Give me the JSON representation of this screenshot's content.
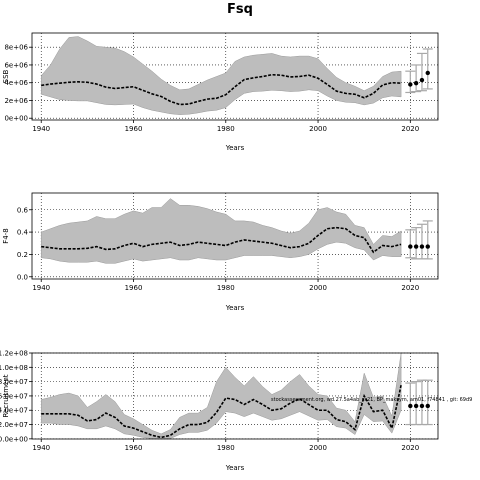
{
  "figure_title": "Fsq",
  "chart_data": [
    {
      "type": "line",
      "name": "ssb-panel",
      "ylabel": "SSB",
      "xlabel": "Years",
      "xlim": [
        1938,
        2026
      ],
      "ylim": [
        -200000,
        9600000
      ],
      "xticks": [
        1940,
        1960,
        1980,
        2000,
        2020
      ],
      "yticks": [
        0,
        2000000,
        4000000,
        6000000,
        8000000
      ],
      "ytick_labels": [
        "0e+00",
        "2e+06",
        "4e+06",
        "6e+06",
        "8e+06"
      ],
      "grid": "dotted",
      "x": [
        1940,
        1942,
        1944,
        1946,
        1948,
        1950,
        1952,
        1954,
        1956,
        1958,
        1960,
        1962,
        1964,
        1966,
        1968,
        1970,
        1972,
        1974,
        1976,
        1978,
        1980,
        1982,
        1984,
        1986,
        1988,
        1990,
        1992,
        1994,
        1996,
        1998,
        2000,
        2002,
        2004,
        2006,
        2008,
        2010,
        2012,
        2014,
        2016,
        2018
      ],
      "median": [
        3700000,
        3850000,
        3950000,
        4050000,
        4100000,
        4050000,
        3850000,
        3500000,
        3350000,
        3450000,
        3550000,
        3150000,
        2750000,
        2450000,
        1900000,
        1550000,
        1600000,
        1900000,
        2150000,
        2250000,
        2650000,
        3550000,
        4350000,
        4550000,
        4700000,
        4900000,
        4850000,
        4650000,
        4700000,
        4850000,
        4500000,
        3800000,
        3050000,
        2800000,
        2700000,
        2300000,
        2800000,
        3750000,
        4000000,
        3950000
      ],
      "lower": [
        2700000,
        2400000,
        2100000,
        2000000,
        1950000,
        1950000,
        1750000,
        1550000,
        1500000,
        1550000,
        1600000,
        1200000,
        900000,
        700000,
        500000,
        400000,
        450000,
        600000,
        800000,
        900000,
        1200000,
        2100000,
        2800000,
        3000000,
        3050000,
        3150000,
        3100000,
        3000000,
        3050000,
        3200000,
        3100000,
        2500000,
        2000000,
        1800000,
        1750000,
        1500000,
        1700000,
        2300000,
        2500000,
        2400000
      ],
      "upper": [
        4800000,
        6000000,
        7800000,
        9100000,
        9200000,
        8700000,
        8100000,
        8000000,
        7900000,
        7500000,
        6900000,
        6100000,
        5300000,
        4400000,
        3700000,
        3200000,
        3300000,
        3800000,
        4300000,
        4700000,
        5100000,
        6400000,
        6900000,
        7100000,
        7200000,
        7300000,
        7000000,
        6900000,
        7000000,
        7000000,
        6700000,
        5600000,
        4600000,
        4000000,
        3600000,
        3100000,
        3600000,
        4700000,
        5200000,
        5300000
      ],
      "forecast_x": [
        2020,
        2021,
        2022,
        2023
      ],
      "forecast_median": [
        3800000,
        3950000,
        4300000,
        5100000
      ],
      "forecast_lower": [
        2900000,
        3000000,
        3100000,
        3300000
      ],
      "forecast_upper": [
        5300000,
        6000000,
        7300000,
        7800000
      ]
    },
    {
      "type": "line",
      "name": "f-panel",
      "ylabel": "F4-8",
      "xlabel": "Years",
      "xlim": [
        1938,
        2026
      ],
      "ylim": [
        -0.02,
        0.75
      ],
      "xticks": [
        1940,
        1960,
        1980,
        2000,
        2020
      ],
      "yticks": [
        0.0,
        0.2,
        0.4,
        0.6
      ],
      "ytick_labels": [
        "0.0",
        "0.2",
        "0.4",
        "0.6"
      ],
      "grid": "dotted",
      "x": [
        1940,
        1942,
        1944,
        1946,
        1948,
        1950,
        1952,
        1954,
        1956,
        1958,
        1960,
        1962,
        1964,
        1966,
        1968,
        1970,
        1972,
        1974,
        1976,
        1978,
        1980,
        1982,
        1984,
        1986,
        1988,
        1990,
        1992,
        1994,
        1996,
        1998,
        2000,
        2002,
        2004,
        2006,
        2008,
        2010,
        2012,
        2014,
        2016,
        2018
      ],
      "median": [
        0.27,
        0.26,
        0.25,
        0.25,
        0.25,
        0.255,
        0.27,
        0.245,
        0.25,
        0.28,
        0.3,
        0.27,
        0.29,
        0.3,
        0.31,
        0.28,
        0.29,
        0.31,
        0.3,
        0.29,
        0.28,
        0.31,
        0.33,
        0.32,
        0.31,
        0.3,
        0.28,
        0.26,
        0.27,
        0.3,
        0.37,
        0.43,
        0.44,
        0.43,
        0.37,
        0.35,
        0.22,
        0.28,
        0.27,
        0.29
      ],
      "lower": [
        0.17,
        0.16,
        0.14,
        0.13,
        0.13,
        0.13,
        0.14,
        0.12,
        0.12,
        0.14,
        0.16,
        0.14,
        0.15,
        0.16,
        0.17,
        0.15,
        0.15,
        0.17,
        0.16,
        0.15,
        0.15,
        0.17,
        0.19,
        0.19,
        0.19,
        0.19,
        0.18,
        0.17,
        0.18,
        0.2,
        0.25,
        0.29,
        0.31,
        0.3,
        0.26,
        0.24,
        0.15,
        0.19,
        0.18,
        0.18
      ],
      "upper": [
        0.4,
        0.43,
        0.46,
        0.48,
        0.49,
        0.5,
        0.54,
        0.52,
        0.52,
        0.56,
        0.59,
        0.57,
        0.62,
        0.62,
        0.7,
        0.64,
        0.64,
        0.63,
        0.61,
        0.58,
        0.56,
        0.5,
        0.5,
        0.49,
        0.46,
        0.44,
        0.41,
        0.39,
        0.41,
        0.48,
        0.6,
        0.62,
        0.58,
        0.56,
        0.46,
        0.44,
        0.29,
        0.37,
        0.36,
        0.41
      ],
      "forecast_x": [
        2020,
        2021,
        2022,
        2023
      ],
      "forecast_median": [
        0.27,
        0.27,
        0.27,
        0.27
      ],
      "forecast_lower": [
        0.17,
        0.16,
        0.16,
        0.16
      ],
      "forecast_upper": [
        0.42,
        0.44,
        0.47,
        0.5
      ]
    },
    {
      "type": "line",
      "name": "recruitment-panel",
      "ylabel": "Recruitment",
      "xlabel": "Years",
      "xlim": [
        1938,
        2026
      ],
      "ylim": [
        -200000,
        120000000
      ],
      "xticks": [
        1940,
        1960,
        1980,
        2000,
        2020
      ],
      "yticks": [
        0,
        20000000,
        40000000,
        60000000,
        80000000,
        100000000,
        120000000
      ],
      "ytick_labels": [
        "0.0e+00",
        "2.0e+07",
        "4.0e+07",
        "6.0e+07",
        "8.0e+07",
        "1.0e+08",
        "1.2e+08"
      ],
      "grid": "dotted",
      "x": [
        1940,
        1942,
        1944,
        1946,
        1948,
        1950,
        1952,
        1954,
        1956,
        1958,
        1960,
        1962,
        1964,
        1966,
        1968,
        1970,
        1972,
        1974,
        1976,
        1978,
        1980,
        1982,
        1984,
        1986,
        1988,
        1990,
        1992,
        1994,
        1996,
        1998,
        2000,
        2002,
        2004,
        2006,
        2008,
        2010,
        2012,
        2014,
        2016,
        2018
      ],
      "median": [
        35000000,
        35000000,
        35000000,
        35000000,
        33000000,
        25000000,
        27000000,
        36000000,
        30000000,
        18000000,
        15000000,
        10000000,
        5000000,
        2000000,
        5000000,
        14000000,
        20000000,
        20000000,
        23000000,
        37000000,
        57000000,
        55000000,
        48000000,
        55000000,
        48000000,
        40000000,
        42000000,
        50000000,
        56000000,
        48000000,
        40000000,
        40000000,
        27000000,
        24000000,
        13000000,
        60000000,
        38000000,
        40000000,
        15000000,
        75000000
      ],
      "lower": [
        22000000,
        22000000,
        20000000,
        20000000,
        18000000,
        14000000,
        14000000,
        18000000,
        14000000,
        7000000,
        5000000,
        2000000,
        500000,
        200000,
        500000,
        6000000,
        9000000,
        9000000,
        12000000,
        22000000,
        38000000,
        36000000,
        31000000,
        36000000,
        31000000,
        26000000,
        28000000,
        33000000,
        38000000,
        32000000,
        26000000,
        27000000,
        17000000,
        15000000,
        6000000,
        34000000,
        24000000,
        25000000,
        8000000,
        40000000
      ],
      "upper": [
        55000000,
        58000000,
        62000000,
        64000000,
        60000000,
        44000000,
        52000000,
        62000000,
        52000000,
        34000000,
        28000000,
        20000000,
        12000000,
        7000000,
        13000000,
        30000000,
        36000000,
        36000000,
        44000000,
        80000000,
        100000000,
        86000000,
        74000000,
        87000000,
        73000000,
        62000000,
        68000000,
        80000000,
        90000000,
        74000000,
        62000000,
        60000000,
        43000000,
        40000000,
        24000000,
        92000000,
        58000000,
        60000000,
        32000000,
        120000000
      ],
      "forecast_x": [
        2020,
        2021,
        2022,
        2023
      ],
      "forecast_median": [
        46000000,
        46000000,
        46000000,
        46000000
      ],
      "forecast_lower": [
        20000000,
        20000000,
        20000000,
        20000000
      ],
      "forecast_upper": [
        78000000,
        80000000,
        82000000,
        82000000
      ],
      "annotation": "stockassessment.org, wd.27.5a4ab_ss21, BP_maksym, am01, f74841 , git: 69d9"
    }
  ]
}
